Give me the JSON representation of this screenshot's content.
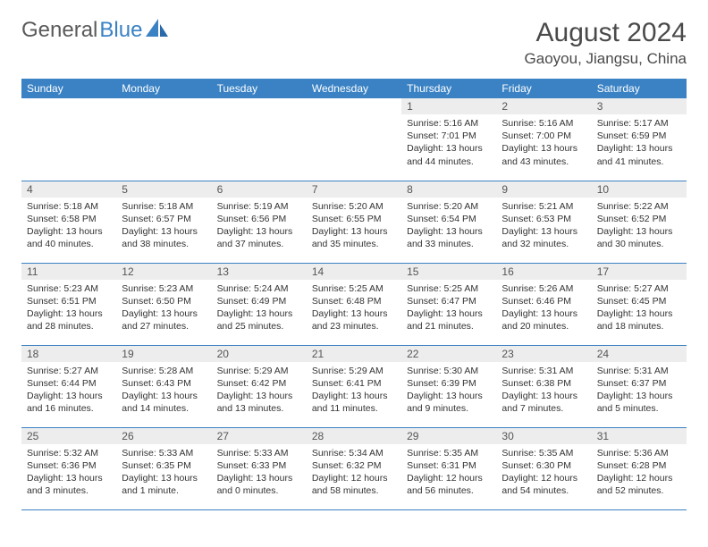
{
  "logo": {
    "general": "General",
    "blue": "Blue"
  },
  "title": {
    "month": "August 2024",
    "location": "Gaoyou, Jiangsu, China"
  },
  "colors": {
    "headerBg": "#3a82c4",
    "dayNumBg": "#ededed"
  },
  "dayNames": [
    "Sunday",
    "Monday",
    "Tuesday",
    "Wednesday",
    "Thursday",
    "Friday",
    "Saturday"
  ],
  "startOffset": 4,
  "days": [
    {
      "n": 1,
      "sr": "5:16 AM",
      "ss": "7:01 PM",
      "dl": "13 hours and 44 minutes."
    },
    {
      "n": 2,
      "sr": "5:16 AM",
      "ss": "7:00 PM",
      "dl": "13 hours and 43 minutes."
    },
    {
      "n": 3,
      "sr": "5:17 AM",
      "ss": "6:59 PM",
      "dl": "13 hours and 41 minutes."
    },
    {
      "n": 4,
      "sr": "5:18 AM",
      "ss": "6:58 PM",
      "dl": "13 hours and 40 minutes."
    },
    {
      "n": 5,
      "sr": "5:18 AM",
      "ss": "6:57 PM",
      "dl": "13 hours and 38 minutes."
    },
    {
      "n": 6,
      "sr": "5:19 AM",
      "ss": "6:56 PM",
      "dl": "13 hours and 37 minutes."
    },
    {
      "n": 7,
      "sr": "5:20 AM",
      "ss": "6:55 PM",
      "dl": "13 hours and 35 minutes."
    },
    {
      "n": 8,
      "sr": "5:20 AM",
      "ss": "6:54 PM",
      "dl": "13 hours and 33 minutes."
    },
    {
      "n": 9,
      "sr": "5:21 AM",
      "ss": "6:53 PM",
      "dl": "13 hours and 32 minutes."
    },
    {
      "n": 10,
      "sr": "5:22 AM",
      "ss": "6:52 PM",
      "dl": "13 hours and 30 minutes."
    },
    {
      "n": 11,
      "sr": "5:23 AM",
      "ss": "6:51 PM",
      "dl": "13 hours and 28 minutes."
    },
    {
      "n": 12,
      "sr": "5:23 AM",
      "ss": "6:50 PM",
      "dl": "13 hours and 27 minutes."
    },
    {
      "n": 13,
      "sr": "5:24 AM",
      "ss": "6:49 PM",
      "dl": "13 hours and 25 minutes."
    },
    {
      "n": 14,
      "sr": "5:25 AM",
      "ss": "6:48 PM",
      "dl": "13 hours and 23 minutes."
    },
    {
      "n": 15,
      "sr": "5:25 AM",
      "ss": "6:47 PM",
      "dl": "13 hours and 21 minutes."
    },
    {
      "n": 16,
      "sr": "5:26 AM",
      "ss": "6:46 PM",
      "dl": "13 hours and 20 minutes."
    },
    {
      "n": 17,
      "sr": "5:27 AM",
      "ss": "6:45 PM",
      "dl": "13 hours and 18 minutes."
    },
    {
      "n": 18,
      "sr": "5:27 AM",
      "ss": "6:44 PM",
      "dl": "13 hours and 16 minutes."
    },
    {
      "n": 19,
      "sr": "5:28 AM",
      "ss": "6:43 PM",
      "dl": "13 hours and 14 minutes."
    },
    {
      "n": 20,
      "sr": "5:29 AM",
      "ss": "6:42 PM",
      "dl": "13 hours and 13 minutes."
    },
    {
      "n": 21,
      "sr": "5:29 AM",
      "ss": "6:41 PM",
      "dl": "13 hours and 11 minutes."
    },
    {
      "n": 22,
      "sr": "5:30 AM",
      "ss": "6:39 PM",
      "dl": "13 hours and 9 minutes."
    },
    {
      "n": 23,
      "sr": "5:31 AM",
      "ss": "6:38 PM",
      "dl": "13 hours and 7 minutes."
    },
    {
      "n": 24,
      "sr": "5:31 AM",
      "ss": "6:37 PM",
      "dl": "13 hours and 5 minutes."
    },
    {
      "n": 25,
      "sr": "5:32 AM",
      "ss": "6:36 PM",
      "dl": "13 hours and 3 minutes."
    },
    {
      "n": 26,
      "sr": "5:33 AM",
      "ss": "6:35 PM",
      "dl": "13 hours and 1 minute."
    },
    {
      "n": 27,
      "sr": "5:33 AM",
      "ss": "6:33 PM",
      "dl": "13 hours and 0 minutes."
    },
    {
      "n": 28,
      "sr": "5:34 AM",
      "ss": "6:32 PM",
      "dl": "12 hours and 58 minutes."
    },
    {
      "n": 29,
      "sr": "5:35 AM",
      "ss": "6:31 PM",
      "dl": "12 hours and 56 minutes."
    },
    {
      "n": 30,
      "sr": "5:35 AM",
      "ss": "6:30 PM",
      "dl": "12 hours and 54 minutes."
    },
    {
      "n": 31,
      "sr": "5:36 AM",
      "ss": "6:28 PM",
      "dl": "12 hours and 52 minutes."
    }
  ],
  "labels": {
    "sunrise": "Sunrise:",
    "sunset": "Sunset:",
    "daylight": "Daylight:"
  }
}
